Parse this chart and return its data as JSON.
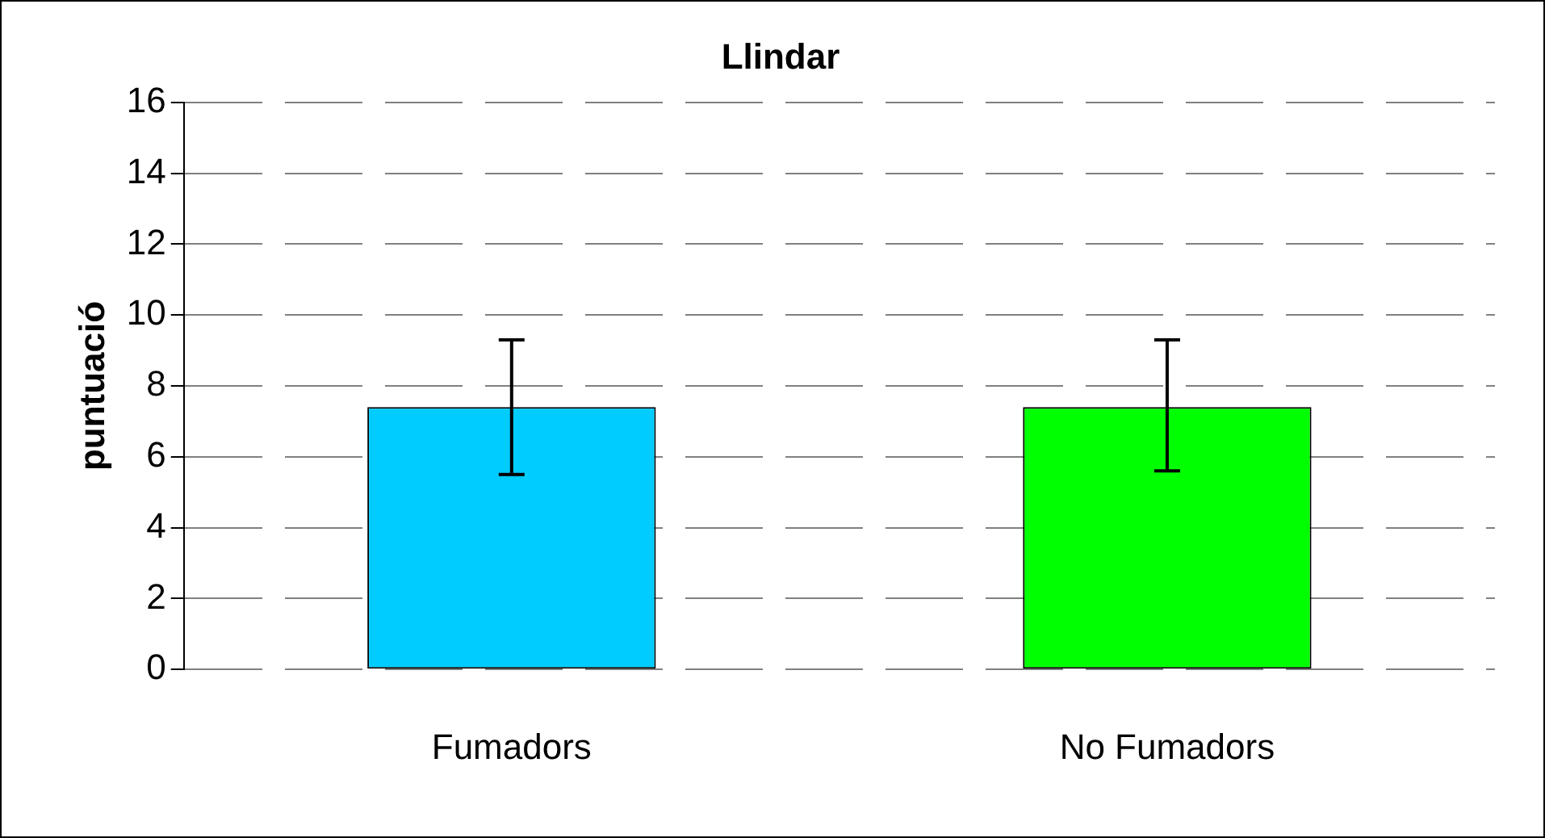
{
  "chart_data": {
    "type": "bar",
    "title": "Llindar",
    "ylabel": "puntuació",
    "categories": [
      "Fumadors",
      "No Fumadors"
    ],
    "values": [
      7.4,
      7.4
    ],
    "colors": [
      "#00ccff",
      "#00ff00"
    ],
    "errors": [
      [
        5.5,
        9.3
      ],
      [
        5.6,
        9.3
      ]
    ],
    "ylim": [
      0,
      16
    ],
    "yticks": [
      0,
      2,
      4,
      6,
      8,
      10,
      12,
      14,
      16
    ],
    "grid": "y",
    "legend": false
  }
}
